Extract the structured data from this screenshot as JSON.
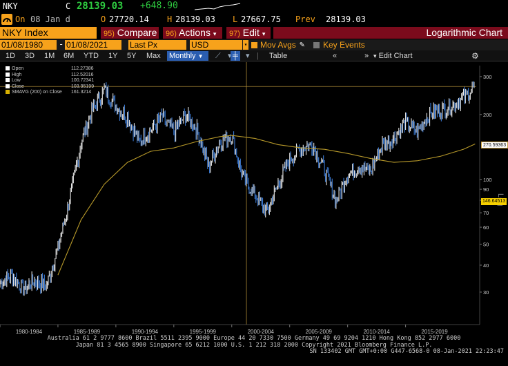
{
  "header": {
    "ticker": "NKY",
    "c_label": "C",
    "last": "28139.03",
    "change": "+648.90",
    "on_label": "On",
    "date": "08 Jan d",
    "o_label": "O",
    "open": "27720.14",
    "h_label": "H",
    "high": "28139.03",
    "l_label": "L",
    "low": "27667.75",
    "prev_label": "Prev",
    "prev": "28139.03"
  },
  "toolbar1": {
    "security": "NKY Index",
    "compare_num": "95)",
    "compare": "Compare",
    "actions_num": "96)",
    "actions": "Actions",
    "edit_num": "97)",
    "edit": "Edit",
    "chart_title": "Logarithmic Chart"
  },
  "toolbar2": {
    "start_date": "01/08/1980",
    "end_date": "01/08/2021",
    "field": "Last Px",
    "currency": "USD",
    "mov_avgs": "Mov Avgs",
    "key_events": "Key Events"
  },
  "toolbar3": {
    "periods": [
      "1D",
      "3D",
      "1M",
      "6M",
      "YTD",
      "1Y",
      "5Y",
      "Max"
    ],
    "frequency": "Monthly",
    "table": "Table",
    "edit_chart": "Edit Chart"
  },
  "legend": [
    {
      "label": "Open",
      "value": "112.27386"
    },
    {
      "label": "High",
      "value": "112.52016"
    },
    {
      "label": "Low",
      "value": "100.72341"
    },
    {
      "label": "Close",
      "value": "103.95199"
    },
    {
      "label": "SMAVG (200)  on Close",
      "value": "161.3214"
    }
  ],
  "tags": {
    "last_price": "270.59363",
    "smavg": "146.64513"
  },
  "chart_data": {
    "type": "line",
    "yscale": "log",
    "ylabel": "Log",
    "y_ticks": [
      30,
      40,
      50,
      60,
      70,
      80,
      90,
      100,
      200,
      300
    ],
    "x_labels": [
      "1980-1984",
      "1985-1989",
      "1990-1994",
      "1995-1999",
      "2000-2004",
      "2005-2009",
      "2010-2014",
      "2015-2019"
    ],
    "series": [
      {
        "values": [
          [
            1980,
            33
          ],
          [
            1981,
            36
          ],
          [
            1982,
            31
          ],
          [
            1983,
            34
          ],
          [
            1984,
            32
          ],
          [
            1985,
            48
          ],
          [
            1986,
            80
          ],
          [
            1987,
            150
          ],
          [
            1988,
            210
          ],
          [
            1989,
            260
          ],
          [
            1990,
            220
          ],
          [
            1991,
            195
          ],
          [
            1992,
            150
          ],
          [
            1993,
            170
          ],
          [
            1994,
            195
          ],
          [
            1995,
            165
          ],
          [
            1996,
            200
          ],
          [
            1997,
            170
          ],
          [
            1998,
            115
          ],
          [
            1999,
            150
          ],
          [
            2000,
            160
          ],
          [
            2001,
            100
          ],
          [
            2002,
            85
          ],
          [
            2003,
            70
          ],
          [
            2004,
            95
          ],
          [
            2005,
            125
          ],
          [
            2006,
            140
          ],
          [
            2007,
            145
          ],
          [
            2008,
            110
          ],
          [
            2009,
            80
          ],
          [
            2010,
            105
          ],
          [
            2011,
            115
          ],
          [
            2012,
            110
          ],
          [
            2013,
            145
          ],
          [
            2014,
            155
          ],
          [
            2015,
            185
          ],
          [
            2016,
            165
          ],
          [
            2017,
            200
          ],
          [
            2018,
            210
          ],
          [
            2019,
            220
          ],
          [
            2020,
            240
          ],
          [
            2021,
            270
          ]
        ]
      },
      {
        "name": "SMAVG (200)  on Close",
        "values": [
          [
            1985,
            36
          ],
          [
            1987,
            65
          ],
          [
            1989,
            95
          ],
          [
            1991,
            120
          ],
          [
            1993,
            135
          ],
          [
            1995,
            140
          ],
          [
            1997,
            150
          ],
          [
            1999,
            158
          ],
          [
            2000,
            160
          ],
          [
            2002,
            155
          ],
          [
            2004,
            145
          ],
          [
            2006,
            140
          ],
          [
            2008,
            138
          ],
          [
            2010,
            132
          ],
          [
            2012,
            125
          ],
          [
            2014,
            120
          ],
          [
            2016,
            122
          ],
          [
            2018,
            128
          ],
          [
            2020,
            138
          ],
          [
            2021,
            146
          ]
        ]
      }
    ]
  },
  "footer": {
    "line1": "Australia 61 2 9777 8600 Brazil 5511 2395 9000 Europe 44 20 7330 7500 Germany 49 69 9204 1210 Hong Kong 852 2977 6000",
    "line2": "Japan 81 3 4565 8900       Singapore 65 6212 1000       U.S. 1 212 318 2000           Copyright 2021 Bloomberg Finance L.P.",
    "line3": "SN 133402 GMT  GMT+0:00 G447-6568-0 08-Jan-2021 22:23:47"
  }
}
